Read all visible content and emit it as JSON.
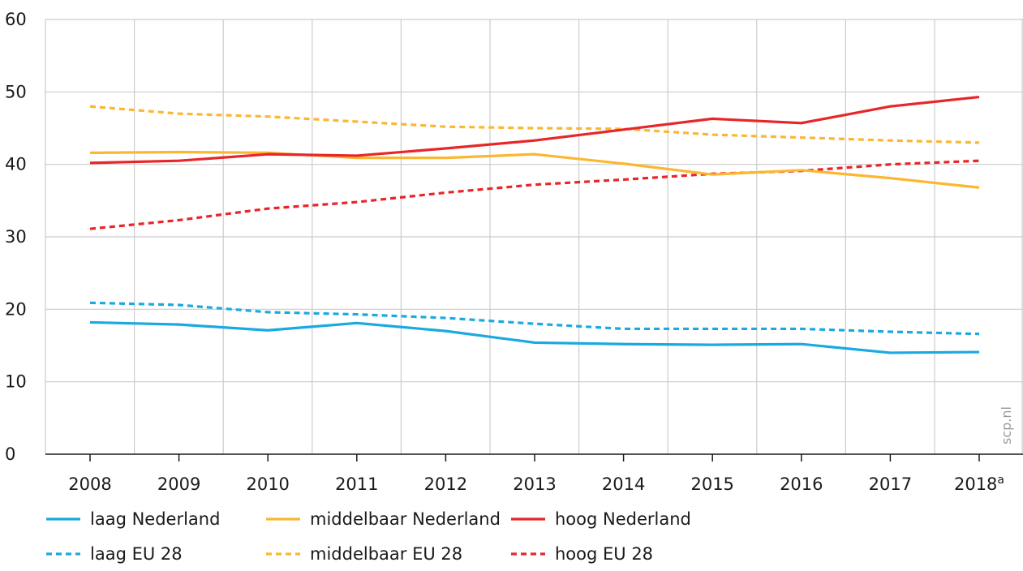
{
  "chart_data": {
    "type": "line",
    "categories": [
      "2008",
      "2009",
      "2010",
      "2011",
      "2012",
      "2013",
      "2014",
      "2015",
      "2016",
      "2017",
      "2018"
    ],
    "last_category_superscript": "a",
    "ylim": [
      0,
      60
    ],
    "y_ticks": [
      "0",
      "10",
      "20",
      "30",
      "40",
      "50",
      "60"
    ],
    "grid": true,
    "legend_position": "bottom",
    "watermark": "scp.nl",
    "series": [
      {
        "name": "laag Nederland",
        "color": "#1aa9e0",
        "style": "solid",
        "values": [
          18.2,
          17.9,
          17.1,
          18.1,
          17.0,
          15.4,
          15.2,
          15.1,
          15.2,
          14.0,
          14.1
        ]
      },
      {
        "name": "middelbaar Nederland",
        "color": "#fbb731",
        "style": "solid",
        "values": [
          41.6,
          41.7,
          41.6,
          40.9,
          40.9,
          41.4,
          40.1,
          38.6,
          39.2,
          38.1,
          36.8
        ]
      },
      {
        "name": "hoog Nederland",
        "color": "#e8262a",
        "style": "solid",
        "values": [
          40.2,
          40.5,
          41.4,
          41.2,
          42.2,
          43.3,
          44.8,
          46.3,
          45.7,
          48.0,
          49.3
        ]
      },
      {
        "name": "laag EU 28",
        "color": "#1aa9e0",
        "style": "dashed",
        "values": [
          20.9,
          20.6,
          19.6,
          19.3,
          18.8,
          18.0,
          17.3,
          17.3,
          17.3,
          16.9,
          16.6
        ]
      },
      {
        "name": "middelbaar EU 28",
        "color": "#fbb731",
        "style": "dashed",
        "values": [
          48.0,
          47.0,
          46.6,
          45.9,
          45.2,
          45.0,
          44.9,
          44.1,
          43.7,
          43.3,
          43.0
        ]
      },
      {
        "name": "hoog EU 28",
        "color": "#e8262a",
        "style": "dashed",
        "values": [
          31.1,
          32.3,
          33.9,
          34.8,
          36.1,
          37.2,
          37.9,
          38.7,
          39.1,
          40.0,
          40.5
        ]
      }
    ]
  }
}
